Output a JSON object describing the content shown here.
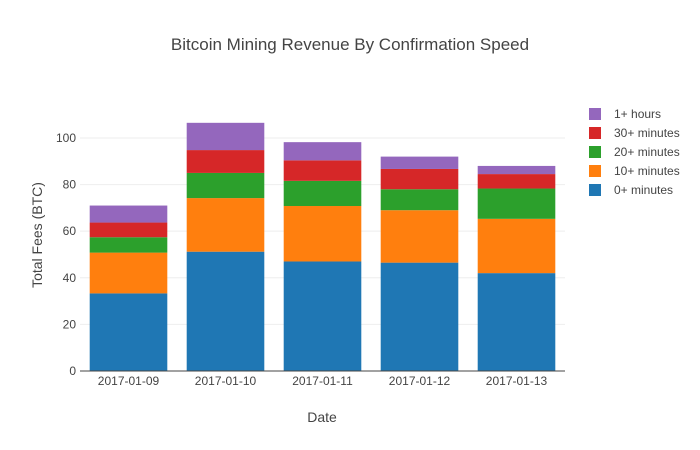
{
  "chart_data": {
    "type": "bar",
    "barmode": "stack",
    "title": "Bitcoin Mining Revenue By Confirmation Speed",
    "xlabel": "Date",
    "ylabel": "Total Fees (BTC)",
    "ylim": [
      0,
      112
    ],
    "yticks": [
      0,
      20,
      40,
      60,
      80,
      100
    ],
    "grid": true,
    "legend_position": "right",
    "categories": [
      "2017-01-09",
      "2017-01-10",
      "2017-01-11",
      "2017-01-12",
      "2017-01-13"
    ],
    "series": [
      {
        "name": "0+ minutes",
        "color": "#1f77b4",
        "values": [
          33.3,
          51.2,
          47.0,
          46.5,
          42.0
        ]
      },
      {
        "name": "10+ minutes",
        "color": "#ff7f0e",
        "values": [
          17.5,
          23.0,
          23.8,
          22.5,
          23.3
        ]
      },
      {
        "name": "20+ minutes",
        "color": "#2ca02c",
        "values": [
          6.6,
          10.8,
          10.8,
          9.0,
          13.0
        ]
      },
      {
        "name": "30+ minutes",
        "color": "#d62728",
        "values": [
          6.3,
          9.8,
          8.8,
          8.7,
          6.2
        ]
      },
      {
        "name": "1+ hours",
        "color": "#9467bd",
        "values": [
          7.3,
          11.7,
          7.8,
          5.3,
          3.5
        ]
      }
    ]
  }
}
